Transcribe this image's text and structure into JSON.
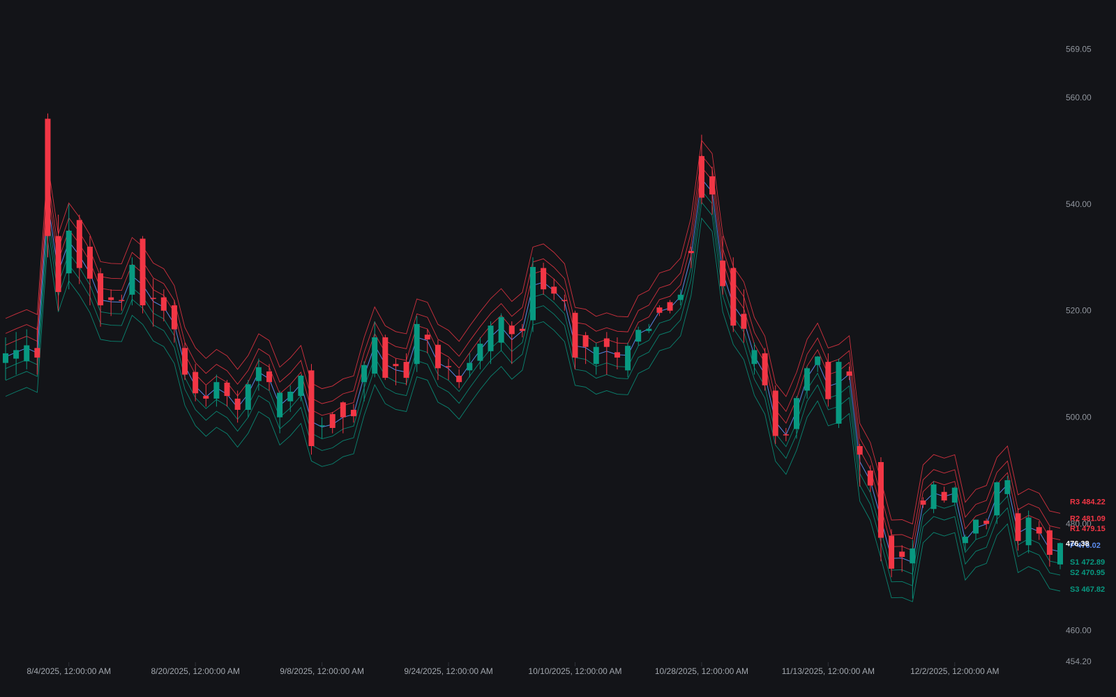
{
  "colors": {
    "background": "#131418",
    "up": "#089981",
    "down": "#f23645",
    "pivot_p": "#5b8def",
    "resistance": "#f23645",
    "support": "#089981",
    "axis_text": "#8f949c"
  },
  "chart_data": {
    "type": "candlestick",
    "title": "",
    "xlabel": "",
    "ylabel": "",
    "ylim": [
      454.2,
      572.0
    ],
    "grid": false,
    "y_ticks": [
      {
        "value": 569.05,
        "label": "569.05"
      },
      {
        "value": 560,
        "label": "560.00"
      },
      {
        "value": 540,
        "label": "540.00"
      },
      {
        "value": 520,
        "label": "520.00"
      },
      {
        "value": 500,
        "label": "500.00"
      },
      {
        "value": 480,
        "label": "480.00"
      },
      {
        "value": 460,
        "label": "460.00"
      },
      {
        "value": 454.2,
        "label": "454.20"
      }
    ],
    "x_ticks": [
      {
        "index": 6,
        "label": "8/4/2025, 12:00:00 AM"
      },
      {
        "index": 18,
        "label": "8/20/2025, 12:00:00 AM"
      },
      {
        "index": 30,
        "label": "9/8/2025, 12:00:00 AM"
      },
      {
        "index": 42,
        "label": "9/24/2025, 12:00:00 AM"
      },
      {
        "index": 54,
        "label": "10/10/2025, 12:00:00 AM"
      },
      {
        "index": 66,
        "label": "10/28/2025, 12:00:00 AM"
      },
      {
        "index": 78,
        "label": "11/13/2025, 12:00:00 AM"
      },
      {
        "index": 90,
        "label": "12/2/2025, 12:00:00 AM"
      }
    ],
    "candles": [
      {
        "o": 510.2,
        "h": 515.0,
        "l": 507.0,
        "c": 512.0
      },
      {
        "o": 511.0,
        "h": 516.0,
        "l": 508.0,
        "c": 512.6
      },
      {
        "o": 510.5,
        "h": 516.5,
        "l": 509.0,
        "c": 513.5
      },
      {
        "o": 513.0,
        "h": 517.0,
        "l": 508.0,
        "c": 511.2
      },
      {
        "o": 556.0,
        "h": 557.0,
        "l": 530.0,
        "c": 534.0
      },
      {
        "o": 534.0,
        "h": 538.0,
        "l": 520.0,
        "c": 523.5
      },
      {
        "o": 527.0,
        "h": 540.0,
        "l": 524.0,
        "c": 535.0
      },
      {
        "o": 537.0,
        "h": 538.0,
        "l": 525.0,
        "c": 528.0
      },
      {
        "o": 532.0,
        "h": 534.0,
        "l": 521.0,
        "c": 526.0
      },
      {
        "o": 527.0,
        "h": 528.0,
        "l": 517.0,
        "c": 521.0
      },
      {
        "o": 522.5,
        "h": 524.0,
        "l": 519.0,
        "c": 522.0
      },
      {
        "o": 522.0,
        "h": 523.0,
        "l": 520.0,
        "c": 521.8
      },
      {
        "o": 523.0,
        "h": 530.0,
        "l": 521.0,
        "c": 528.6
      },
      {
        "o": 533.5,
        "h": 534.0,
        "l": 519.5,
        "c": 521.0
      },
      {
        "o": 522.4,
        "h": 526.0,
        "l": 517.0,
        "c": 522.2
      },
      {
        "o": 522.5,
        "h": 524.0,
        "l": 518.0,
        "c": 520.0
      },
      {
        "o": 521.0,
        "h": 522.0,
        "l": 514.0,
        "c": 516.5
      },
      {
        "o": 513.0,
        "h": 514.0,
        "l": 507.0,
        "c": 508.0
      },
      {
        "o": 508.5,
        "h": 510.0,
        "l": 503.0,
        "c": 504.5
      },
      {
        "o": 504.0,
        "h": 506.0,
        "l": 502.0,
        "c": 503.5
      },
      {
        "o": 503.5,
        "h": 508.0,
        "l": 502.0,
        "c": 506.6
      },
      {
        "o": 506.5,
        "h": 507.0,
        "l": 502.0,
        "c": 504.0
      },
      {
        "o": 503.5,
        "h": 505.0,
        "l": 499.0,
        "c": 501.4
      },
      {
        "o": 501.4,
        "h": 507.0,
        "l": 500.0,
        "c": 506.2
      },
      {
        "o": 506.8,
        "h": 511.0,
        "l": 505.0,
        "c": 509.4
      },
      {
        "o": 508.6,
        "h": 510.0,
        "l": 505.0,
        "c": 506.6
      },
      {
        "o": 500.0,
        "h": 505.0,
        "l": 497.0,
        "c": 504.6
      },
      {
        "o": 503.0,
        "h": 506.0,
        "l": 501.0,
        "c": 504.8
      },
      {
        "o": 504.0,
        "h": 508.0,
        "l": 503.0,
        "c": 507.8
      },
      {
        "o": 508.8,
        "h": 510.0,
        "l": 493.0,
        "c": 494.6
      },
      {
        "o": 498.5,
        "h": 500.0,
        "l": 496.0,
        "c": 498.5
      },
      {
        "o": 500.6,
        "h": 501.0,
        "l": 497.0,
        "c": 498.0
      },
      {
        "o": 502.8,
        "h": 503.0,
        "l": 497.0,
        "c": 500.0
      },
      {
        "o": 501.4,
        "h": 502.5,
        "l": 499.0,
        "c": 500.2
      },
      {
        "o": 506.6,
        "h": 510.5,
        "l": 503.0,
        "c": 509.8
      },
      {
        "o": 508.2,
        "h": 518.0,
        "l": 507.5,
        "c": 515.0
      },
      {
        "o": 515.0,
        "h": 515.5,
        "l": 507.0,
        "c": 507.4
      },
      {
        "o": 510.0,
        "h": 511.0,
        "l": 506.0,
        "c": 509.6
      },
      {
        "o": 510.4,
        "h": 512.0,
        "l": 506.0,
        "c": 507.4
      },
      {
        "o": 510.0,
        "h": 519.0,
        "l": 508.5,
        "c": 517.5
      },
      {
        "o": 515.5,
        "h": 516.5,
        "l": 512.0,
        "c": 514.6
      },
      {
        "o": 513.6,
        "h": 514.5,
        "l": 507.0,
        "c": 509.2
      },
      {
        "o": 509.6,
        "h": 511.0,
        "l": 507.0,
        "c": 509.4
      },
      {
        "o": 507.8,
        "h": 509.0,
        "l": 505.5,
        "c": 506.6
      },
      {
        "o": 508.8,
        "h": 512.0,
        "l": 507.5,
        "c": 510.2
      },
      {
        "o": 510.6,
        "h": 515.0,
        "l": 509.0,
        "c": 513.8
      },
      {
        "o": 512.4,
        "h": 518.0,
        "l": 510.0,
        "c": 517.2
      },
      {
        "o": 514.0,
        "h": 519.5,
        "l": 512.5,
        "c": 518.8
      },
      {
        "o": 517.2,
        "h": 518.0,
        "l": 510.0,
        "c": 515.6
      },
      {
        "o": 516.6,
        "h": 517.5,
        "l": 515.0,
        "c": 516.2
      },
      {
        "o": 518.2,
        "h": 530.0,
        "l": 516.0,
        "c": 528.2
      },
      {
        "o": 528.0,
        "h": 529.0,
        "l": 523.0,
        "c": 524.0
      },
      {
        "o": 524.5,
        "h": 526.0,
        "l": 522.0,
        "c": 523.2
      },
      {
        "o": 522.0,
        "h": 523.0,
        "l": 520.0,
        "c": 521.8
      },
      {
        "o": 519.6,
        "h": 520.0,
        "l": 509.0,
        "c": 511.2
      },
      {
        "o": 515.4,
        "h": 516.0,
        "l": 510.0,
        "c": 513.2
      },
      {
        "o": 510.0,
        "h": 514.0,
        "l": 508.0,
        "c": 513.2
      },
      {
        "o": 514.8,
        "h": 516.0,
        "l": 508.0,
        "c": 513.2
      },
      {
        "o": 512.2,
        "h": 515.0,
        "l": 509.0,
        "c": 511.2
      },
      {
        "o": 508.8,
        "h": 514.0,
        "l": 507.5,
        "c": 513.4
      },
      {
        "o": 514.2,
        "h": 517.0,
        "l": 513.5,
        "c": 516.4
      },
      {
        "o": 516.2,
        "h": 517.5,
        "l": 515.8,
        "c": 516.6
      },
      {
        "o": 520.6,
        "h": 521.0,
        "l": 519.0,
        "c": 519.6
      },
      {
        "o": 521.6,
        "h": 522.0,
        "l": 519.5,
        "c": 520.0
      },
      {
        "o": 522.0,
        "h": 524.0,
        "l": 521.0,
        "c": 523.0
      },
      {
        "o": 531.2,
        "h": 532.0,
        "l": 528.0,
        "c": 530.8
      },
      {
        "o": 549.0,
        "h": 553.0,
        "l": 540.0,
        "c": 541.2
      },
      {
        "o": 545.2,
        "h": 547.0,
        "l": 538.0,
        "c": 541.8
      },
      {
        "o": 529.4,
        "h": 534.0,
        "l": 523.0,
        "c": 524.6
      },
      {
        "o": 528.0,
        "h": 530.0,
        "l": 516.0,
        "c": 517.2
      },
      {
        "o": 519.4,
        "h": 524.0,
        "l": 514.0,
        "c": 516.6
      },
      {
        "o": 510.0,
        "h": 514.0,
        "l": 508.0,
        "c": 512.6
      },
      {
        "o": 512.0,
        "h": 513.0,
        "l": 505.0,
        "c": 506.0
      },
      {
        "o": 505.0,
        "h": 506.0,
        "l": 495.0,
        "c": 496.5
      },
      {
        "o": 496.8,
        "h": 498.0,
        "l": 495.5,
        "c": 496.6
      },
      {
        "o": 497.8,
        "h": 504.0,
        "l": 496.0,
        "c": 503.6
      },
      {
        "o": 505.0,
        "h": 509.5,
        "l": 503.5,
        "c": 509.2
      },
      {
        "o": 509.8,
        "h": 511.5,
        "l": 508.5,
        "c": 511.4
      },
      {
        "o": 510.4,
        "h": 512.0,
        "l": 502.0,
        "c": 503.4
      },
      {
        "o": 498.8,
        "h": 511.0,
        "l": 498.0,
        "c": 510.4
      },
      {
        "o": 508.6,
        "h": 509.5,
        "l": 507.0,
        "c": 507.8
      },
      {
        "o": 494.6,
        "h": 495.0,
        "l": 487.0,
        "c": 493.0
      },
      {
        "o": 490.0,
        "h": 491.0,
        "l": 486.0,
        "c": 487.2
      },
      {
        "o": 491.6,
        "h": 492.5,
        "l": 473.0,
        "c": 477.4
      },
      {
        "o": 477.8,
        "h": 479.0,
        "l": 470.0,
        "c": 471.6
      },
      {
        "o": 474.8,
        "h": 476.0,
        "l": 471.0,
        "c": 473.8
      },
      {
        "o": 472.6,
        "h": 477.0,
        "l": 466.0,
        "c": 475.4
      },
      {
        "o": 484.4,
        "h": 485.0,
        "l": 483.0,
        "c": 483.6
      },
      {
        "o": 482.8,
        "h": 488.0,
        "l": 482.0,
        "c": 487.4
      },
      {
        "o": 486.0,
        "h": 487.0,
        "l": 484.0,
        "c": 484.4
      },
      {
        "o": 484.0,
        "h": 487.0,
        "l": 483.5,
        "c": 486.8
      },
      {
        "o": 476.4,
        "h": 478.0,
        "l": 475.0,
        "c": 477.6
      },
      {
        "o": 478.2,
        "h": 480.0,
        "l": 477.0,
        "c": 480.8
      },
      {
        "o": 480.6,
        "h": 481.0,
        "l": 479.0,
        "c": 480.0
      },
      {
        "o": 481.6,
        "h": 488.0,
        "l": 480.0,
        "c": 487.8
      },
      {
        "o": 485.6,
        "h": 489.0,
        "l": 485.0,
        "c": 488.2
      },
      {
        "o": 482.0,
        "h": 483.0,
        "l": 475.0,
        "c": 476.8
      },
      {
        "o": 476.0,
        "h": 482.5,
        "l": 474.5,
        "c": 481.2
      },
      {
        "o": 479.4,
        "h": 480.5,
        "l": 477.0,
        "c": 478.2
      },
      {
        "o": 478.8,
        "h": 479.5,
        "l": 472.0,
        "c": 474.2
      },
      {
        "o": 472.4,
        "h": 476.5,
        "l": 471.5,
        "c": 476.4
      }
    ],
    "pivot_series": [
      {
        "name": "R3",
        "offset": 7.2
      },
      {
        "name": "R2",
        "offset": 4.4
      },
      {
        "name": "R1",
        "offset": 2.2
      },
      {
        "name": "P",
        "offset": 0
      },
      {
        "name": "S1",
        "offset": -2.2
      },
      {
        "name": "S2",
        "offset": -4.4
      },
      {
        "name": "S3",
        "offset": -7.4
      }
    ],
    "pivot_labels": [
      {
        "name": "R3",
        "value": 484.22,
        "label": "R3  484.22",
        "kind": "resistance"
      },
      {
        "name": "R2",
        "value": 481.09,
        "label": "R2  481.09",
        "kind": "resistance"
      },
      {
        "name": "R1",
        "value": 479.15,
        "label": "R1  479.15",
        "kind": "resistance"
      },
      {
        "name": "P",
        "value": 476.02,
        "label": "P  476.02",
        "kind": "pivot"
      },
      {
        "name": "S1",
        "value": 472.89,
        "label": "S1  472.89",
        "kind": "support"
      },
      {
        "name": "S2",
        "value": 470.95,
        "label": "S2  470.95",
        "kind": "support"
      },
      {
        "name": "S3",
        "value": 467.82,
        "label": "S3  467.82",
        "kind": "support"
      }
    ],
    "last_price": {
      "value": 476.38,
      "label": "476.38"
    }
  }
}
